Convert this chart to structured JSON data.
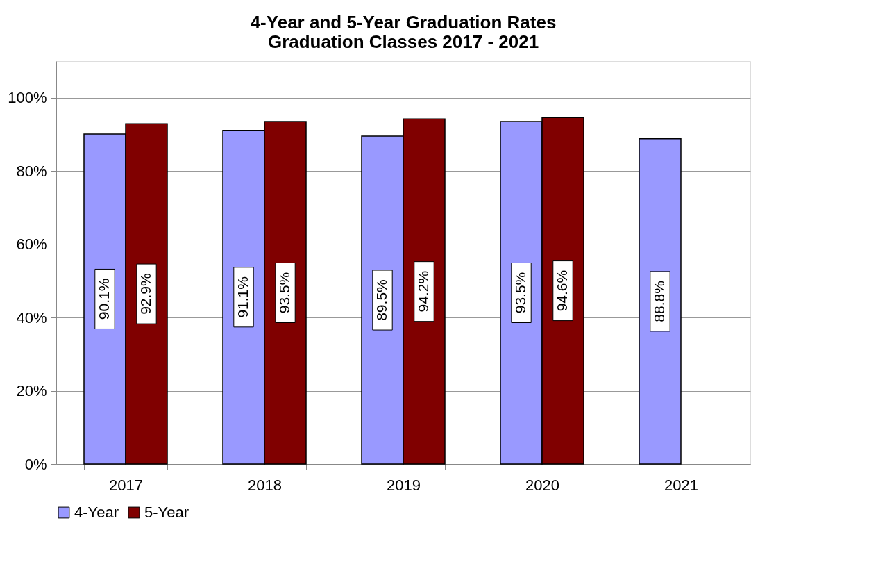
{
  "chart_data": {
    "type": "bar",
    "title": [
      "4-Year and 5-Year Graduation Rates",
      "Graduation Classes 2017 - 2021"
    ],
    "categories": [
      "2017",
      "2018",
      "2019",
      "2020",
      "2021"
    ],
    "series": [
      {
        "name": "4-Year",
        "color": "#9999ff",
        "values": [
          90.1,
          91.1,
          89.5,
          93.5,
          88.8
        ],
        "value_labels": [
          "90.1%",
          "91.1%",
          "89.5%",
          "93.5%",
          "88.8%"
        ]
      },
      {
        "name": "5-Year",
        "color": "#800000",
        "values": [
          92.9,
          93.5,
          94.2,
          94.6,
          null
        ],
        "value_labels": [
          "92.9%",
          "93.5%",
          "94.2%",
          "94.6%",
          null
        ]
      }
    ],
    "ylim": [
      0,
      110
    ],
    "yticks": [
      {
        "value": 0,
        "label": "0%"
      },
      {
        "value": 20,
        "label": "20%"
      },
      {
        "value": 40,
        "label": "40%"
      },
      {
        "value": 60,
        "label": "60%"
      },
      {
        "value": 80,
        "label": "80%"
      },
      {
        "value": 100,
        "label": "100%"
      }
    ],
    "grid": "y",
    "legend": "bottom"
  }
}
